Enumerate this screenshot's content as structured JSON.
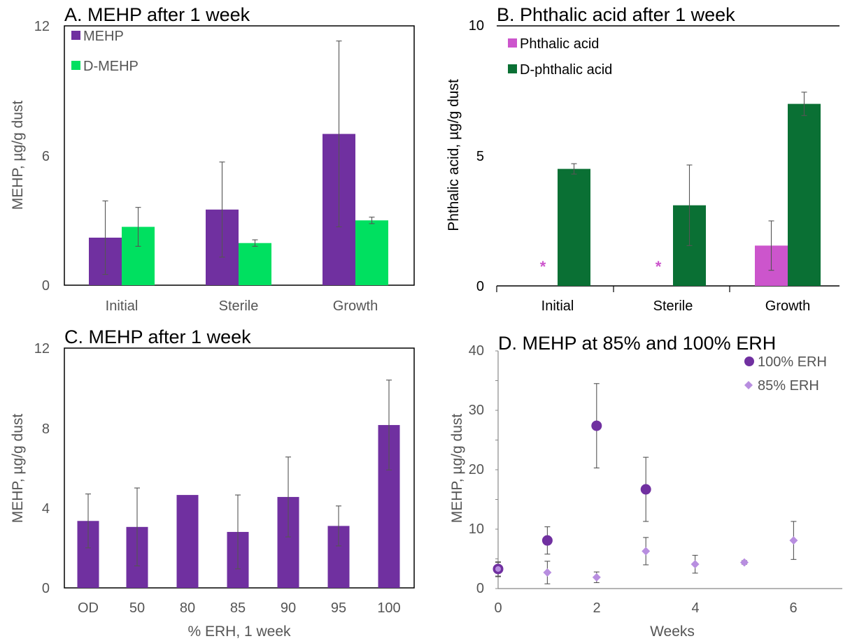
{
  "chart_data": [
    {
      "type": "bar",
      "title": "A. MEHP after 1 week",
      "xlabel": "",
      "ylabel": "MEHP, µg/g dust",
      "ylim": [
        0,
        12
      ],
      "yticks": [
        "0",
        "6",
        "12"
      ],
      "categories": [
        "Initial",
        "Sterile",
        "Growth"
      ],
      "series": [
        {
          "name": "MEHP",
          "color": "#7030a0",
          "values": [
            2.2,
            3.5,
            7.0
          ],
          "errors": [
            1.7,
            2.2,
            4.3
          ]
        },
        {
          "name": "D-MEHP",
          "color": "#00e060",
          "values": [
            2.7,
            1.95,
            3.0
          ],
          "errors": [
            0.9,
            0.15,
            0.15
          ]
        }
      ],
      "legend": "top-left",
      "grid": false
    },
    {
      "type": "bar",
      "title": "B. Phthalic acid after 1 week",
      "xlabel": "",
      "ylabel": "Phthalic acid, µg/g dust",
      "ylim": [
        0,
        10
      ],
      "yticks": [
        "0",
        "5",
        "10"
      ],
      "categories": [
        "Initial",
        "Sterile",
        "Growth"
      ],
      "series": [
        {
          "name": "Phthalic acid",
          "color": "#cc55cc",
          "values": [
            0,
            0,
            1.55
          ],
          "errors": [
            0,
            0,
            0.95
          ]
        },
        {
          "name": "D-phthalic acid",
          "color": "#0a7034",
          "values": [
            4.5,
            3.1,
            7.0
          ],
          "errors": [
            0.2,
            1.55,
            0.45
          ]
        }
      ],
      "annotations": [
        {
          "text": "*",
          "category": "Initial"
        },
        {
          "text": "*",
          "category": "Sterile"
        }
      ],
      "legend": "top-left",
      "grid": false
    },
    {
      "type": "bar",
      "title": "C. MEHP after 1 week",
      "xlabel": "% ERH, 1 week",
      "ylabel": "MEHP, µg/g dust",
      "ylim": [
        0,
        12
      ],
      "yticks": [
        "0",
        "4",
        "8",
        "12"
      ],
      "categories": [
        "OD",
        "50",
        "80",
        "85",
        "90",
        "95",
        "100"
      ],
      "series": [
        {
          "name": "",
          "color": "#7030a0",
          "values": [
            3.35,
            3.05,
            4.65,
            2.8,
            4.55,
            3.1,
            8.15
          ],
          "errors": [
            1.35,
            1.95,
            0,
            1.85,
            2.0,
            1.0,
            2.25
          ]
        }
      ],
      "grid": false
    },
    {
      "type": "scatter",
      "title": "D. MEHP at 85% and 100% ERH",
      "xlabel": "Weeks",
      "ylabel": "MEHP, µg/g dust",
      "xlim": [
        0,
        7
      ],
      "ylim": [
        0,
        40
      ],
      "xticks": [
        "0",
        "2",
        "4",
        "6"
      ],
      "yticks": [
        "0",
        "10",
        "20",
        "30",
        "40"
      ],
      "series": [
        {
          "name": "100% ERH",
          "color": "#7030a0",
          "marker": "circle",
          "points": [
            [
              0,
              3.3
            ],
            [
              1,
              8.1
            ],
            [
              2,
              27.4
            ],
            [
              3,
              16.7
            ]
          ],
          "errors": [
            1.2,
            2.3,
            7.1,
            5.4
          ]
        },
        {
          "name": "85% ERH",
          "color": "#b88ee0",
          "marker": "diamond",
          "points": [
            [
              0,
              3.2
            ],
            [
              1,
              2.7
            ],
            [
              2,
              1.9
            ],
            [
              3,
              6.3
            ],
            [
              4,
              4.1
            ],
            [
              5,
              4.4
            ],
            [
              6,
              8.1
            ]
          ],
          "errors": [
            1.2,
            1.9,
            0.9,
            2.3,
            1.5,
            0.3,
            3.2
          ]
        }
      ],
      "legend": "top-right",
      "grid": false
    }
  ]
}
